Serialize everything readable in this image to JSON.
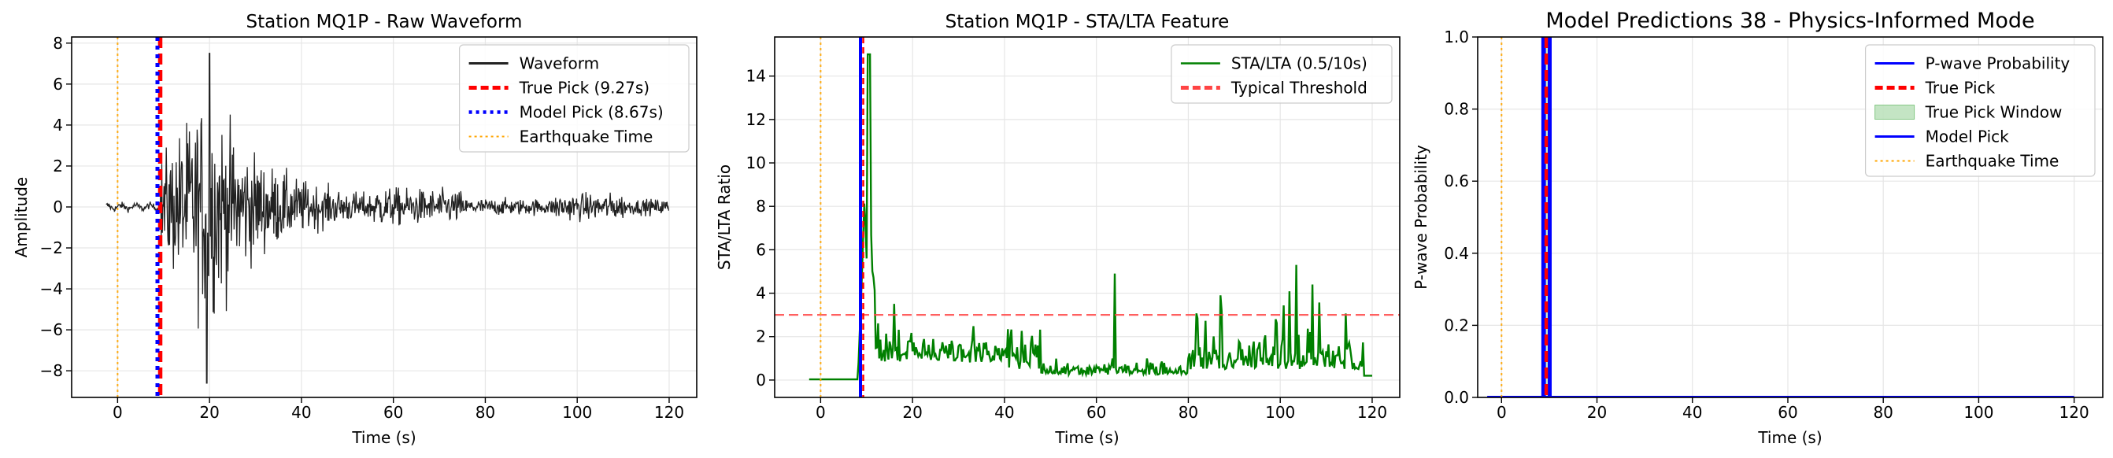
{
  "chart_data": [
    {
      "type": "line",
      "title": "Station MQ1P - Raw Waveform",
      "xlabel": "Time (s)",
      "ylabel": "Amplitude",
      "xlim": [
        -10,
        126
      ],
      "ylim": [
        -9.3,
        8.3
      ],
      "xticks": [
        0,
        20,
        40,
        60,
        80,
        100,
        120
      ],
      "yticks": [
        -8,
        -6,
        -4,
        -2,
        0,
        2,
        4,
        6,
        8
      ],
      "grid": true,
      "legend_position": "top-right",
      "series": [
        {
          "name": "Waveform",
          "color": "#222222",
          "kind": "waveform",
          "t_start": -2.5,
          "t_end": 120,
          "onset": 9.3,
          "peak_amp": 7.5,
          "min_amp": -8.6
        },
        {
          "name": "True Pick (9.27s)",
          "color": "#ff0000",
          "kind": "vline",
          "x": 9.27,
          "style": "dashed"
        },
        {
          "name": "Model Pick (8.67s)",
          "color": "#0000ff",
          "kind": "vline",
          "x": 8.67,
          "style": "dotted"
        },
        {
          "name": "Earthquake Time",
          "color": "#ffa500",
          "kind": "vline",
          "x": 0,
          "style": "dotted-thin"
        }
      ]
    },
    {
      "type": "line",
      "title": "Station MQ1P - STA/LTA Feature",
      "xlabel": "Time (s)",
      "ylabel": "STA/LTA Ratio",
      "xlim": [
        -10,
        126
      ],
      "ylim": [
        -0.8,
        15.8
      ],
      "xticks": [
        0,
        20,
        40,
        60,
        80,
        100,
        120
      ],
      "yticks": [
        0,
        2,
        4,
        6,
        8,
        10,
        12,
        14
      ],
      "grid": true,
      "legend_position": "top-right",
      "series": [
        {
          "name": "STA/LTA (0.5/10s)",
          "color": "#008000",
          "kind": "stalta",
          "t_start": -2.5,
          "t_end": 120,
          "peak": 15.0,
          "peak_x": 10.5
        },
        {
          "name": "Typical Threshold",
          "color": "#ff4444",
          "kind": "hline",
          "y": 3,
          "style": "dashed"
        },
        {
          "name": "",
          "color": "#0000ff",
          "kind": "vline",
          "x": 8.67,
          "style": "solid"
        },
        {
          "name": "",
          "color": "#ff0000",
          "kind": "vline",
          "x": 9.27,
          "style": "dashed-thin"
        },
        {
          "name": "",
          "color": "#ffa500",
          "kind": "vline",
          "x": 0,
          "style": "dotted-thin"
        }
      ]
    },
    {
      "type": "line",
      "title": "Model Predictions 38 - Physics-Informed Mode",
      "xlabel": "Time (s)",
      "ylabel": "P-wave Probability",
      "xlim": [
        -5,
        126
      ],
      "ylim": [
        0,
        1
      ],
      "xticks": [
        0,
        20,
        40,
        60,
        80,
        100,
        120
      ],
      "yticks": [
        0.0,
        0.2,
        0.4,
        0.6,
        0.8,
        1.0
      ],
      "grid": true,
      "legend_position": "top-right",
      "series": [
        {
          "name": "P-wave Probability",
          "color": "#0000ff",
          "kind": "prob",
          "t_start": -3,
          "t_end": 120,
          "spike_from": 8.67,
          "spike_to": 10.3
        },
        {
          "name": "True Pick",
          "color": "#ff0000",
          "kind": "vline",
          "x": 9.27,
          "style": "dashed"
        },
        {
          "name": "True Pick Window",
          "color": "#2ca02c",
          "kind": "span",
          "x0": 8.77,
          "x1": 9.77
        },
        {
          "name": "Model Pick",
          "color": "#0000ff",
          "kind": "vline",
          "x": 8.67,
          "style": "solid"
        },
        {
          "name": "Earthquake Time",
          "color": "#ffa500",
          "kind": "vline",
          "x": 0,
          "style": "dotted-thin"
        }
      ]
    }
  ]
}
